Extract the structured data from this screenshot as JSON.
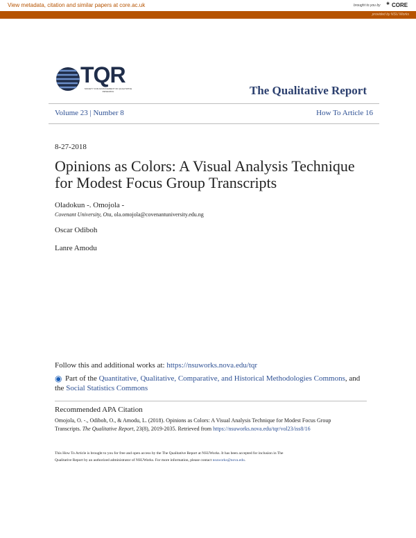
{
  "core_bar": {
    "left_text": "View metadata, citation and similar papers at ",
    "left_link": "core.ac.uk",
    "brought": "brought to you by",
    "core": "CORE",
    "provided": "provided by NSU Works"
  },
  "header": {
    "logo": "TQR",
    "logo_tagline": "SOCIETY FOR ADVANCEMENT OF QUALITATIVE RESEARCH",
    "journal": "The Qualitative Report",
    "volume": "Volume 23 | Number 8",
    "article": "How To Article 16"
  },
  "date": "8-27-2018",
  "title_line1": "Opinions as Colors: A Visual Analysis Technique",
  "title_line2": "for Modest Focus Group Transcripts",
  "authors": [
    {
      "name": "Oladokun -. Omojola -",
      "affil": "Covenant University, Ota",
      "email": ", ola.omojola@covenantuniversity.edu.ng"
    },
    {
      "name": "Oscar Odiboh"
    },
    {
      "name": "Lanre Amodu"
    }
  ],
  "follow": {
    "text": "Follow this and additional works at: ",
    "link": "https://nsuworks.nova.edu/tqr"
  },
  "part": {
    "prefix": "Part of the ",
    "link1": "Quantitative, Qualitative, Comparative, and Historical Methodologies Commons",
    "mid": ", and",
    "the": "the ",
    "link2": "Social Statistics Commons"
  },
  "citation": {
    "heading": "Recommended APA Citation",
    "line1": "Omojola, O. -., Odiboh, O., & Amodu, L. (2018). Opinions as Colors: A Visual Analysis Technique for Modest Focus Group",
    "line2_a": "Transcripts. ",
    "line2_journal": "The Qualitative Report",
    "line2_b": ", 23(8), 2019-2035. Retrieved from ",
    "line2_link": "https://nsuworks.nova.edu/tqr/vol23/iss8/16"
  },
  "footer": {
    "line1": "This How To Article is brought to you for free and open access by the The Qualitative Report at NSUWorks. It has been accepted for inclusion in The",
    "line2": "Qualitative Report by an authorized administrator of NSUWorks. For more information, please contact ",
    "email": "nsuworks@nova.edu",
    "end": "."
  }
}
